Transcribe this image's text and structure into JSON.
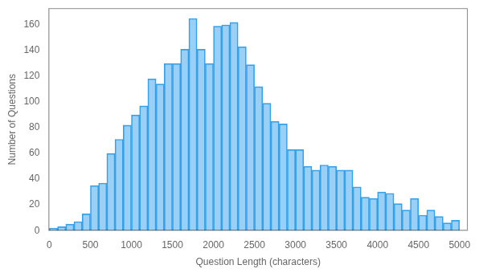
{
  "chart_data": {
    "type": "histogram",
    "xlabel": "Question Length (characters)",
    "ylabel": "Number of Questions",
    "bins": [
      0,
      100,
      200,
      300,
      400,
      500,
      600,
      700,
      800,
      900,
      1000,
      1100,
      1200,
      1300,
      1400,
      1500,
      1600,
      1700,
      1800,
      1900,
      2000,
      2100,
      2200,
      2300,
      2400,
      2500,
      2600,
      2700,
      2800,
      2900,
      3000,
      3100,
      3200,
      3300,
      3400,
      3500,
      3600,
      3700,
      3800,
      3900,
      4000,
      4100,
      4200,
      4300,
      4400,
      4500,
      4600,
      4700,
      4800,
      4900,
      5000
    ],
    "values": [
      2,
      3,
      5,
      7,
      13,
      35,
      37,
      60,
      71,
      82,
      90,
      97,
      118,
      114,
      130,
      130,
      141,
      165,
      141,
      130,
      159,
      160,
      162,
      143,
      129,
      112,
      99,
      85,
      83,
      63,
      63,
      50,
      47,
      51,
      50,
      47,
      47,
      34,
      26,
      25,
      30,
      29,
      21,
      16,
      25,
      12,
      16,
      11,
      6,
      8
    ],
    "xlim": [
      -10,
      5100
    ],
    "ylim": [
      0,
      173
    ],
    "xticks": [
      0,
      500,
      1000,
      1500,
      2000,
      2500,
      3000,
      3500,
      4000,
      4500,
      5000
    ],
    "yticks": [
      0,
      20,
      40,
      60,
      80,
      100,
      120,
      140,
      160
    ],
    "grid": false
  }
}
